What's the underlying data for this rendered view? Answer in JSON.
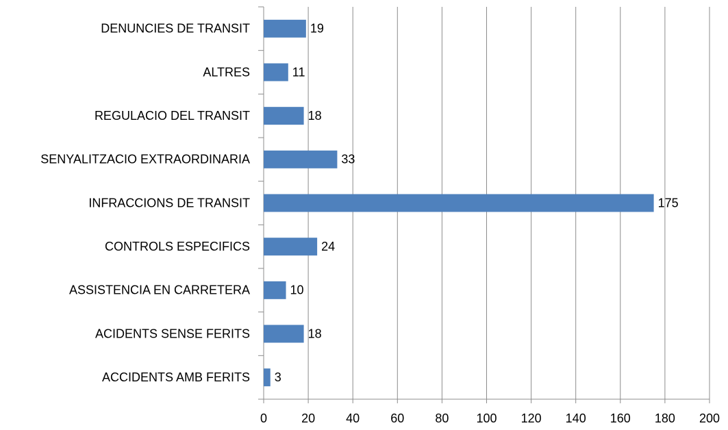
{
  "chart_data": {
    "type": "barh",
    "categories": [
      "DENUNCIES DE TRANSIT",
      "ALTRES",
      "REGULACIO DEL TRANSIT",
      "SENYALITZACIO EXTRAORDINARIA",
      "INFRACCIONS DE TRANSIT",
      "CONTROLS ESPECIFICS",
      "ASSISTENCIA EN CARRETERA",
      "ACIDENTS SENSE FERITS",
      "ACCIDENTS AMB FERITS"
    ],
    "values": [
      19,
      11,
      18,
      33,
      175,
      24,
      10,
      18,
      3
    ],
    "color": "#4f81bd",
    "xlim": [
      0,
      200
    ],
    "xticks": [
      0,
      20,
      40,
      60,
      80,
      100,
      120,
      140,
      160,
      180,
      200
    ],
    "grid": true
  }
}
